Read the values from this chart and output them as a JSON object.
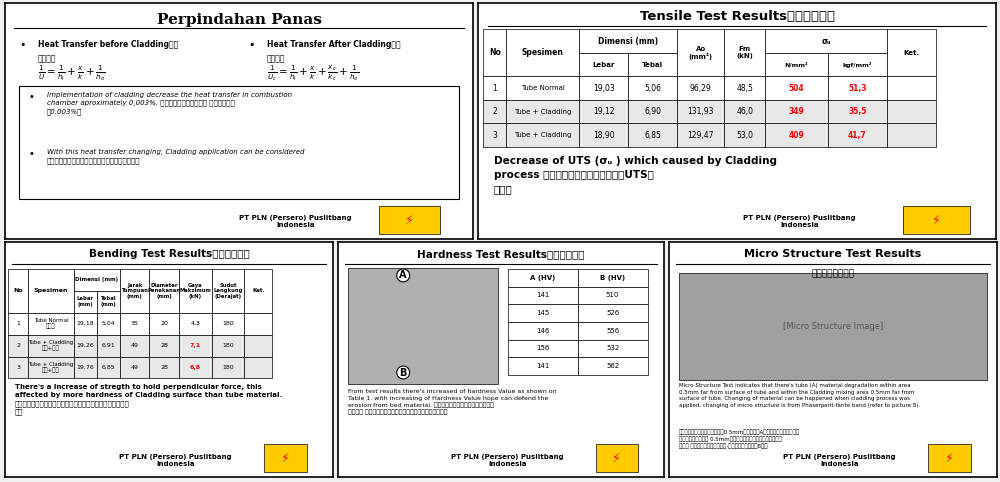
{
  "bg_color": "#f0f0f0",
  "panel_top_left": {
    "title": "Perpindahan Panas",
    "bullet1_en": "Heat Transfer before Cladding熔敞",
    "bullet1_cn": "前热传递",
    "bullet2_en": "Heat Transfer After Cladding熔敞",
    "bullet2_cn": "后热传递",
    "box_bullet1": "Implementation of cladding decrease the heat transfer in combustion\nchamber aproximately 0,003%. 燃烧室内实施熔敞区域， 热传递降低约\n了0.003%。",
    "box_bullet2": "With this heat transfer changing, Cladding application can be considered\n此热传递的变化値不大，可以考虑应用熔敞技术。",
    "footer": "PT PLN (Persero) Puslitbang\nIndonesia"
  },
  "panel_top_right": {
    "title": "Tensile Test Results拉力测试结果",
    "rows": [
      [
        "1",
        "Tube Normal",
        "19,03",
        "5,06",
        "96,29",
        "48,5",
        "504",
        "51,3",
        ""
      ],
      [
        "2",
        "Tube + Cladding",
        "19,12",
        "6,90",
        "131,93",
        "46,0",
        "349",
        "35,5",
        ""
      ],
      [
        "3",
        "Tube + Cladding",
        "18,90",
        "6,85",
        "129,47",
        "53,0",
        "409",
        "41,7",
        ""
      ]
    ],
    "bottom_text": "Decrease of UTS (σᵤ ) which caused by Cladding\nprocess 熔敞过程导致极限抗拉强度（UTS）\n下降。",
    "footer": "PT PLN (Persero) Puslitbang\nIndonesia"
  },
  "panel_bottom_left": {
    "title": "Bending Test Results弯曲测试结果",
    "rows": [
      [
        "1",
        "Tube Normal\n管子子",
        "19,18",
        "5,04",
        "35",
        "20",
        "4,3",
        "180",
        ""
      ],
      [
        "2",
        "Tube + Cladding\n管子+熔敞",
        "19,26",
        "6,91",
        "49",
        "28",
        "7,1",
        "180",
        ""
      ],
      [
        "3",
        "Tube + Cladding\n管子+熔敞",
        "19,76",
        "6,85",
        "49",
        "28",
        "6,8",
        "180",
        ""
      ]
    ],
    "body_text": "There's a Increase of stregth to hold perpendicular force, this\naffected by more hardness of Cladding surface than tube material.\n强度有明显增加，这是由于熔敞表面比管子表面硬度加强产生\n的。",
    "footer": "PT PLN (Persero) Puslitbang\nIndonesia"
  },
  "panel_bottom_mid": {
    "title": "Hardness Test Results硬度测试结果",
    "hv_data": [
      [
        "141",
        "510"
      ],
      [
        "145",
        "526"
      ],
      [
        "146",
        "556"
      ],
      [
        "156",
        "532"
      ],
      [
        "141",
        "562"
      ]
    ],
    "body_text": "From test results there's increased of hardness Value as shown on\nTable 1. with increasing of Hardness Value hope can defend the\nerosion from bed material. 硬度测试结果显示硬度有明显增加，\n见表一， 希望硬度上的明显增加能够有效抗拒床料的磨损。",
    "footer": "PT PLN (Persero) Puslitbang\nIndonesia"
  },
  "panel_bottom_right": {
    "title": "Micro Structure Test Results",
    "title2": "微观结构测试结果",
    "body_text1": "Micro Structure Test indicates that there's tube (A) material degradation within area\n0.5mm far from surface of tube and within the Cladding mixing area 0.5mm far from\nsurface of tube. Changing of material can be happened when cladding process was\napplied, changing of micro structure is from Phaserperit-ferite band (refer to picture 8).",
    "body_text2": "微观结构测试表明在管子表面以0.5mm处有管子（A）材料的降解，并在熔敞\n混合区内居管子表面 0.5mm处。在熔敞工艺实施时，应用蚫芙标\n材料。 材料的微观结构从珠光体-铁素体带变化（见图8）。",
    "footer": "PT PLN (Persero) Puslitbang\nIndonesia"
  },
  "yellow": "#ffcc00",
  "red": "#ff0000",
  "gray_cell": "#e0e0e0",
  "light_gray": "#e8e8e8"
}
